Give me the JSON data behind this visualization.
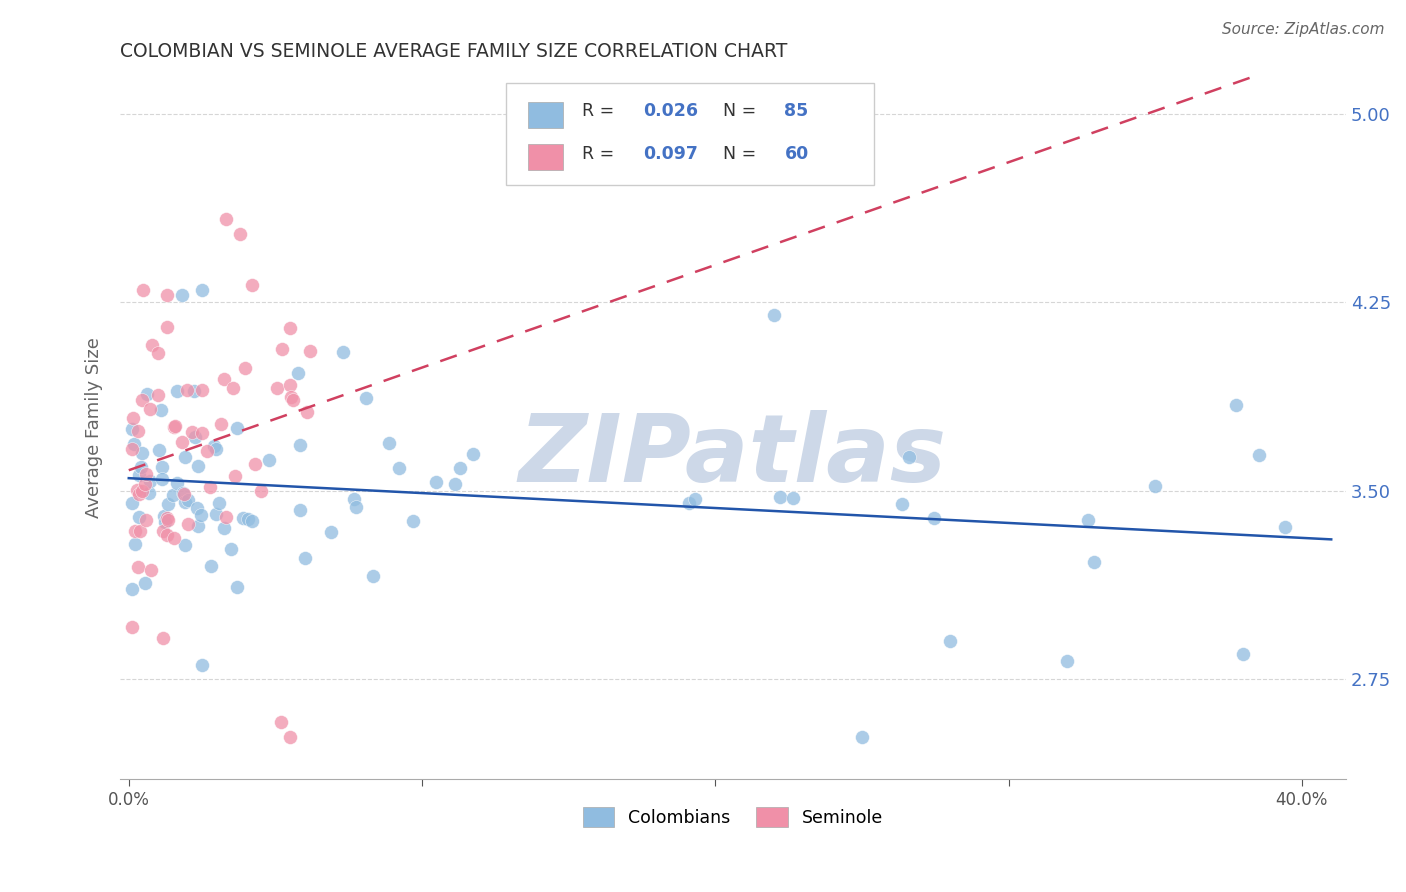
{
  "title": "COLOMBIAN VS SEMINOLE AVERAGE FAMILY SIZE CORRELATION CHART",
  "source": "Source: ZipAtlas.com",
  "ylabel": "Average Family Size",
  "yticks": [
    2.75,
    3.5,
    4.25,
    5.0
  ],
  "ymin": 2.35,
  "ymax": 5.15,
  "xmin": -0.003,
  "xmax": 0.415,
  "colombians_color": "#90bce0",
  "seminole_color": "#f090a8",
  "trend_colombians_color": "#2255aa",
  "trend_seminole_color": "#d04060",
  "watermark": "ZIPatlas",
  "watermark_color": "#cdd8e8",
  "legend_col_color": "#90bce0",
  "legend_sem_color": "#f090a8",
  "legend_r_col": "0.026",
  "legend_n_col": "85",
  "legend_r_sem": "0.097",
  "legend_n_sem": "60",
  "legend_text_color": "#333333",
  "legend_val_color": "#4472c4",
  "grid_color": "#cccccc",
  "background_color": "#ffffff",
  "title_color": "#333333",
  "axis_label_color": "#666666",
  "tick_color_right": "#4472c4",
  "bottom_legend_col": "Colombians",
  "bottom_legend_sem": "Seminole"
}
